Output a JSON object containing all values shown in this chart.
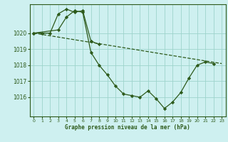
{
  "title": "Graphe pression niveau de la mer (hPa)",
  "background_color": "#cef0f0",
  "grid_color": "#9dd4cc",
  "line_color": "#2d5a1b",
  "marker_color": "#2d5a1b",
  "xlim": [
    -0.5,
    23.5
  ],
  "ylim": [
    1014.8,
    1021.8
  ],
  "yticks": [
    1016,
    1017,
    1018,
    1019,
    1020
  ],
  "xticks": [
    0,
    1,
    2,
    3,
    4,
    5,
    6,
    7,
    8,
    9,
    10,
    11,
    12,
    13,
    14,
    15,
    16,
    17,
    18,
    19,
    20,
    21,
    22,
    23
  ],
  "series1_x": [
    0,
    1,
    2,
    3,
    4,
    5,
    6,
    7,
    8
  ],
  "series1_y": [
    1020.0,
    1020.0,
    1020.0,
    1021.2,
    1021.5,
    1021.3,
    1021.4,
    1019.5,
    1019.3
  ],
  "series2_x": [
    0,
    3,
    4,
    5,
    6,
    7,
    8,
    9,
    10,
    11,
    12,
    13,
    14,
    15,
    16,
    17,
    18,
    19,
    20,
    21,
    22
  ],
  "series2_y": [
    1020.0,
    1020.2,
    1021.0,
    1021.4,
    1021.3,
    1018.8,
    1018.0,
    1017.4,
    1016.7,
    1016.2,
    1016.1,
    1016.0,
    1016.4,
    1015.9,
    1015.3,
    1015.7,
    1016.3,
    1017.2,
    1018.0,
    1018.2,
    1018.1
  ],
  "series3_x": [
    0,
    23
  ],
  "series3_y": [
    1020.0,
    1018.1
  ]
}
